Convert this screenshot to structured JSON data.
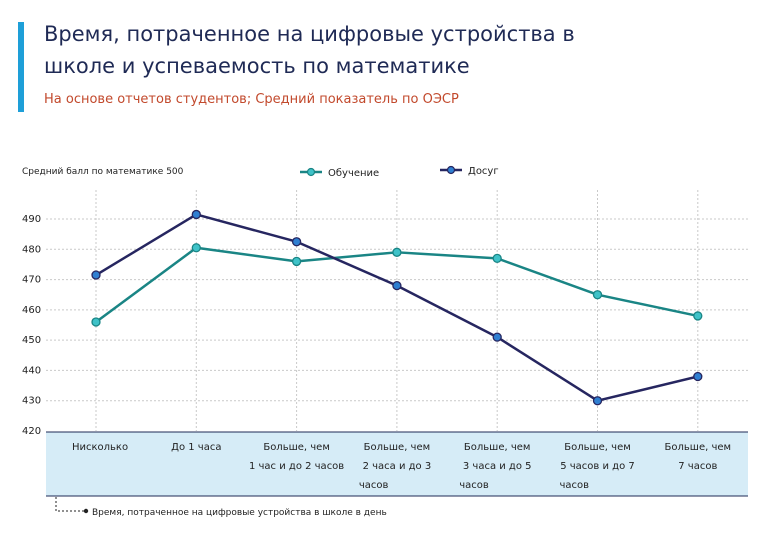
{
  "header": {
    "title_line1": "Время, потраченное на цифровые устройства в",
    "title_line2": "школе и успеваемость по математике",
    "subtitle": "На основе отчетов студентов; Средний показатель по ОЭСР"
  },
  "colors": {
    "accent": "#1e9fd8",
    "learning": "#1a8585",
    "learning_marker": "#3fc2c8",
    "leisure": "#262660",
    "leisure_marker": "#2f7fd1",
    "category_band": "#d6ecf7",
    "grid": "#c9c9c9"
  },
  "chart_data": {
    "type": "line",
    "ylabel": "Средний балл по математике 500",
    "xlabel": "Время, потраченное на цифровые устройства в школе в день",
    "ylim": [
      420,
      490
    ],
    "yticks": [
      420,
      430,
      440,
      450,
      460,
      470,
      480,
      490
    ],
    "grid": true,
    "legend_position": "top-center",
    "categories": [
      [
        "Нисколько"
      ],
      [
        "До 1 часа"
      ],
      [
        "Больше, чем",
        "1 час и до 2 часов"
      ],
      [
        "Больше, чем",
        "2 часа и до 3",
        "часов"
      ],
      [
        "Больше, чем",
        "3 часа и до 5",
        "часов"
      ],
      [
        "Больше, чем",
        "5 часов и до 7",
        "часов"
      ],
      [
        "Больше, чем",
        "7 часов"
      ]
    ],
    "series": [
      {
        "name": "Обучение",
        "values": [
          456,
          480.5,
          476,
          479,
          477,
          465,
          458
        ]
      },
      {
        "name": "Досуг",
        "values": [
          471.5,
          491.5,
          482.5,
          468,
          451,
          430,
          438
        ]
      }
    ]
  }
}
